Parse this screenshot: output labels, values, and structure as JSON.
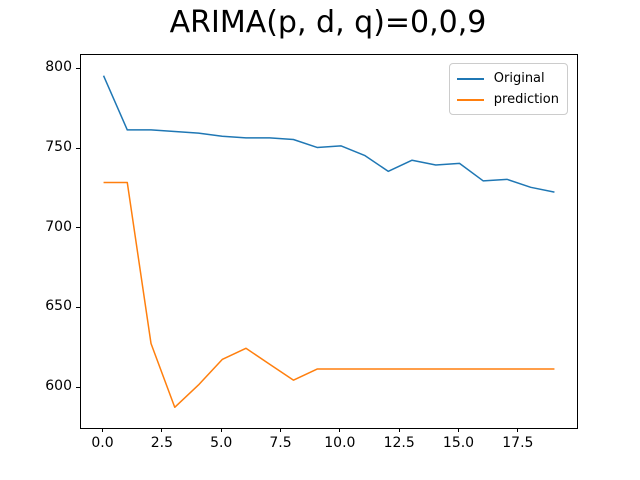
{
  "title": "ARIMA(p, d, q)=0,0,9",
  "chart_data": {
    "type": "line",
    "title": "ARIMA(p, d, q)=0,0,9",
    "xlabel": "",
    "ylabel": "",
    "x": [
      0,
      1,
      2,
      3,
      4,
      5,
      6,
      7,
      8,
      9,
      10,
      11,
      12,
      13,
      14,
      15,
      16,
      17,
      18,
      19
    ],
    "series": [
      {
        "name": "Original",
        "color": "#1f77b4",
        "values": [
          796,
          762,
          762,
          761,
          760,
          758,
          757,
          757,
          756,
          751,
          752,
          746,
          736,
          743,
          740,
          741,
          730,
          731,
          726,
          723
        ]
      },
      {
        "name": "prediction",
        "color": "#ff7f0e",
        "values": [
          729,
          729,
          628,
          588,
          602,
          618,
          625,
          615,
          605,
          612,
          612,
          612,
          612,
          612,
          612,
          612,
          612,
          612,
          612,
          612
        ]
      }
    ],
    "xlim": [
      -0.95,
      19.95
    ],
    "ylim": [
      575,
      809
    ],
    "xticks": [
      0.0,
      2.5,
      5.0,
      7.5,
      10.0,
      12.5,
      15.0,
      17.5
    ],
    "xtick_labels": [
      "0.0",
      "2.5",
      "5.0",
      "7.5",
      "10.0",
      "12.5",
      "15.0",
      "17.5"
    ],
    "yticks": [
      600,
      650,
      700,
      750,
      800
    ],
    "ytick_labels": [
      "600",
      "650",
      "700",
      "750",
      "800"
    ],
    "grid": false,
    "legend_position": "upper right",
    "axes_edge_color": "#000000"
  }
}
